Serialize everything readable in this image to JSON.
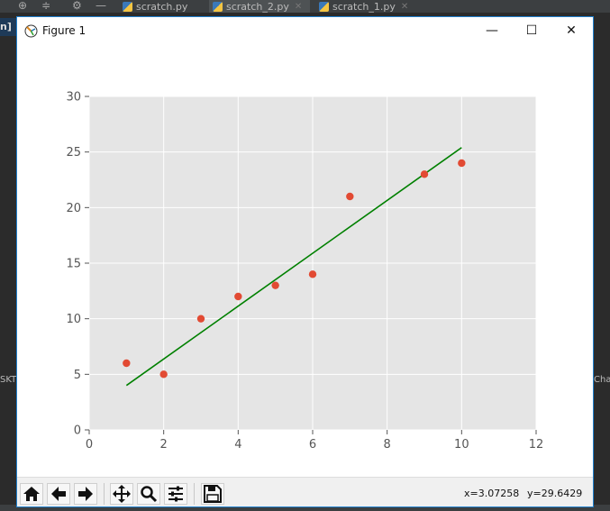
{
  "ide": {
    "tabs": [
      {
        "label": "scratch.py",
        "active": false
      },
      {
        "label": "scratch_2.py",
        "active": true
      },
      {
        "label": "scratch_1.py",
        "active": false
      }
    ],
    "left_panel_label": "n]",
    "left_edge_text": "SKT",
    "right_edge_text": "Char"
  },
  "window": {
    "title": "Figure 1",
    "minimize_glyph": "—",
    "maximize_glyph": "☐",
    "close_glyph": "✕"
  },
  "toolbar": {
    "buttons": [
      "home",
      "back",
      "forward",
      "pan",
      "zoom",
      "configure-subplots",
      "save"
    ],
    "x_readout": "x=3.07258",
    "y_readout": "y=29.6429"
  },
  "chart_data": {
    "type": "scatter",
    "style": "ggplot",
    "xlim": [
      0,
      12
    ],
    "ylim": [
      0,
      30
    ],
    "xticks": [
      0,
      2,
      4,
      6,
      8,
      10,
      12
    ],
    "yticks": [
      0,
      5,
      10,
      15,
      20,
      25,
      30
    ],
    "grid": true,
    "points": {
      "x": [
        1,
        2,
        3,
        4,
        5,
        6,
        7,
        9,
        10
      ],
      "y": [
        6,
        5,
        10,
        12,
        13,
        14,
        21,
        23,
        24
      ],
      "color": "#e24a33"
    },
    "fit_line": {
      "x": [
        1,
        10
      ],
      "y": [
        4,
        25.4
      ],
      "color": "#008000"
    },
    "colors": {
      "axes_bg": "#e5e5e5",
      "grid": "#ffffff",
      "tick_text": "#555555"
    }
  }
}
